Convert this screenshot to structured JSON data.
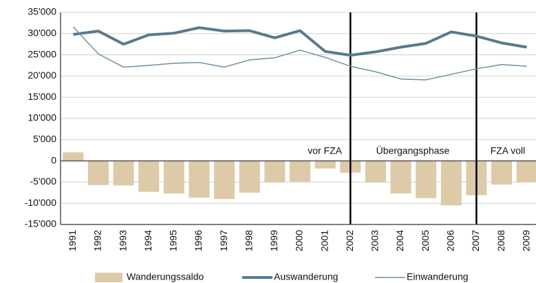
{
  "chart_data": {
    "type": "bar-line",
    "categories": [
      "1991",
      "1992",
      "1993",
      "1994",
      "1995",
      "1996",
      "1997",
      "1998",
      "1999",
      "2000",
      "2001",
      "2002",
      "2003",
      "2004",
      "2005",
      "2006",
      "2007",
      "2008",
      "2009"
    ],
    "series": [
      {
        "name": "Wanderungssaldo",
        "type": "bar",
        "color": "#dccaa9",
        "values": [
          2000,
          -5700,
          -5800,
          -7300,
          -7700,
          -8700,
          -9000,
          -7500,
          -5100,
          -4900,
          -1800,
          -2800,
          -5100,
          -7700,
          -8800,
          -10500,
          -8100,
          -5600,
          -5000
        ]
      },
      {
        "name": "Auswanderung",
        "type": "line",
        "color": "#587a8e",
        "width": 4,
        "values": [
          29800,
          30600,
          27500,
          29700,
          30100,
          31400,
          30600,
          30700,
          29000,
          30700,
          25800,
          24900,
          25700,
          26800,
          27700,
          30400,
          29400,
          27800,
          26800
        ]
      },
      {
        "name": "Einwanderung",
        "type": "line",
        "color": "#6f8fa0",
        "width": 1.5,
        "values": [
          31600,
          25200,
          22100,
          22500,
          23000,
          23200,
          22100,
          23800,
          24300,
          26100,
          24400,
          22300,
          21000,
          19300,
          19100,
          20400,
          21700,
          22700,
          22300
        ]
      }
    ],
    "ylim": [
      -15000,
      35000
    ],
    "yticks": [
      {
        "value": -15000,
        "label": "-15'000"
      },
      {
        "value": -10000,
        "label": "-10'000"
      },
      {
        "value": -5000,
        "label": "-5'000"
      },
      0,
      {
        "value": 5000,
        "label": "5'000"
      },
      {
        "value": 10000,
        "label": "10'000"
      },
      {
        "value": 15000,
        "label": "15'000"
      },
      {
        "value": 20000,
        "label": "20'000"
      },
      {
        "value": 25000,
        "label": "25'000"
      },
      {
        "value": 30000,
        "label": "30'000"
      },
      {
        "value": 35000,
        "label": "35'000"
      }
    ],
    "grid": true,
    "vlines": [
      "2002",
      "2007"
    ],
    "annotations": [
      "vor FZA",
      "Übergangsphase",
      "FZA voll"
    ],
    "legend": "bottom"
  }
}
